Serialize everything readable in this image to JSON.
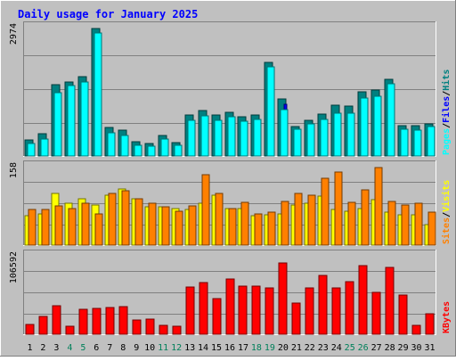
{
  "chart_data": {
    "type": "bar",
    "title": "Daily usage for January 2025",
    "categories": [
      "1",
      "2",
      "3",
      "4",
      "5",
      "6",
      "7",
      "8",
      "9",
      "10",
      "11",
      "12",
      "13",
      "14",
      "15",
      "16",
      "17",
      "18",
      "19",
      "20",
      "21",
      "22",
      "23",
      "24",
      "25",
      "26",
      "27",
      "28",
      "29",
      "30",
      "31"
    ],
    "weekend_days": [
      "4",
      "5",
      "11",
      "12",
      "18",
      "19",
      "25",
      "26"
    ],
    "panels": [
      {
        "name": "hits-files-pages",
        "ymax_label": "2974",
        "ylim": [
          0,
          2974
        ],
        "legend": [
          {
            "text": "Hits",
            "color": "#008080"
          },
          {
            "text": "Files",
            "color": "#0000ff"
          },
          {
            "text": "Pages",
            "color": "#00ffff"
          }
        ],
        "series": [
          {
            "name": "Hits",
            "color": "#008080",
            "values": [
              370,
              500,
              1610,
              1670,
              1780,
              2880,
              650,
              580,
              330,
              280,
              470,
              310,
              920,
              1030,
              920,
              990,
              880,
              920,
              2100,
              1280,
              660,
              810,
              940,
              1140,
              1130,
              1440,
              1480,
              1720,
              690,
              680,
              720
            ]
          },
          {
            "name": "Files",
            "color": "#0000ff",
            "values": [
              0,
              0,
              0,
              0,
              0,
              0,
              0,
              0,
              0,
              0,
              0,
              0,
              0,
              0,
              0,
              0,
              0,
              0,
              0,
              1160,
              0,
              0,
              0,
              0,
              0,
              0,
              0,
              0,
              0,
              0,
              0
            ]
          },
          {
            "name": "Pages",
            "color": "#00ffff",
            "values": [
              280,
              390,
              1420,
              1580,
              1660,
              2780,
              520,
              460,
              250,
              220,
              380,
              250,
              800,
              910,
              800,
              880,
              790,
              820,
              2000,
              1050,
              600,
              730,
              820,
              960,
              970,
              1310,
              1350,
              1630,
              600,
              580,
              660
            ]
          }
        ]
      },
      {
        "name": "visits-sites",
        "ymax_label": "158",
        "ylim": [
          0,
          158
        ],
        "legend": [
          {
            "text": "Visits",
            "color": "#ffff00"
          },
          {
            "text": "Sites",
            "color": "#ff8000"
          }
        ],
        "series": [
          {
            "name": "Visits",
            "color": "#ffff00",
            "values": [
              56,
              60,
              100,
              80,
              90,
              78,
              96,
              108,
              90,
              74,
              74,
              70,
              68,
              80,
              96,
              70,
              70,
              56,
              58,
              60,
              78,
              80,
              95,
              68,
              66,
              70,
              88,
              64,
              58,
              58,
              40
            ]
          },
          {
            "name": "Sites",
            "color": "#ff8000",
            "values": [
              68,
              68,
              76,
              70,
              80,
              60,
              100,
              104,
              90,
              80,
              74,
              66,
              76,
              136,
              100,
              70,
              82,
              60,
              64,
              84,
              100,
              96,
              128,
              140,
              82,
              106,
              150,
              84,
              78,
              80,
              64
            ]
          }
        ]
      },
      {
        "name": "kbytes",
        "ymax_label": "106592",
        "ylim": [
          0,
          106592
        ],
        "legend": [
          {
            "text": "KBytes",
            "color": "#ff0000"
          }
        ],
        "series": [
          {
            "name": "KBytes",
            "color": "#ff0000",
            "values": [
              13000,
              23000,
              37000,
              10000,
              33000,
              34000,
              35000,
              36000,
              18000,
              20000,
              12000,
              11000,
              61000,
              67000,
              46000,
              72000,
              62000,
              63000,
              60000,
              93000,
              40000,
              60000,
              76000,
              60000,
              68000,
              89000,
              54000,
              87000,
              51000,
              12000,
              27000
            ]
          }
        ]
      }
    ]
  }
}
